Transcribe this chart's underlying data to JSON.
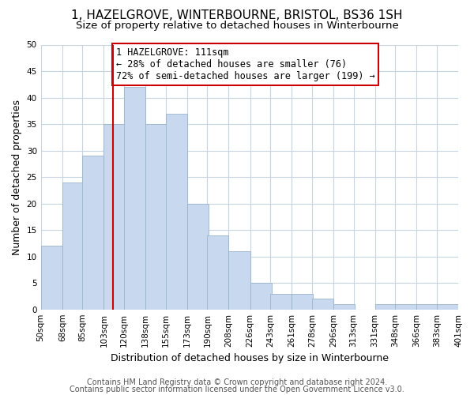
{
  "title": "1, HAZELGROVE, WINTERBOURNE, BRISTOL, BS36 1SH",
  "subtitle": "Size of property relative to detached houses in Winterbourne",
  "xlabel": "Distribution of detached houses by size in Winterbourne",
  "ylabel": "Number of detached properties",
  "bar_color": "#c8d8ee",
  "bar_edge_color": "#9ab4cc",
  "vline_x": 111,
  "vline_color": "#cc0000",
  "annotation_title": "1 HAZELGROVE: 111sqm",
  "annotation_line1": "← 28% of detached houses are smaller (76)",
  "annotation_line2": "72% of semi-detached houses are larger (199) →",
  "annotation_box_color": "#ffffff",
  "annotation_box_edge": "#cc0000",
  "bins_left": [
    50,
    68,
    85,
    103,
    120,
    138,
    155,
    173,
    190,
    208,
    226,
    243,
    261,
    278,
    296,
    313,
    331,
    348,
    366,
    383
  ],
  "bin_width": 18,
  "counts": [
    12,
    24,
    29,
    35,
    42,
    35,
    37,
    20,
    14,
    11,
    5,
    3,
    3,
    2,
    1,
    0,
    1,
    1,
    1,
    1
  ],
  "tick_labels": [
    "50sqm",
    "68sqm",
    "85sqm",
    "103sqm",
    "120sqm",
    "138sqm",
    "155sqm",
    "173sqm",
    "190sqm",
    "208sqm",
    "226sqm",
    "243sqm",
    "261sqm",
    "278sqm",
    "296sqm",
    "313sqm",
    "331sqm",
    "348sqm",
    "366sqm",
    "383sqm",
    "401sqm"
  ],
  "ylim": [
    0,
    50
  ],
  "yticks": [
    0,
    5,
    10,
    15,
    20,
    25,
    30,
    35,
    40,
    45,
    50
  ],
  "grid_color": "#c8d4e0",
  "footer1": "Contains HM Land Registry data © Crown copyright and database right 2024.",
  "footer2": "Contains public sector information licensed under the Open Government Licence v3.0.",
  "background_color": "#ffffff",
  "plot_bg_color": "#ffffff",
  "title_fontsize": 11,
  "subtitle_fontsize": 9.5,
  "axis_label_fontsize": 9,
  "tick_fontsize": 7.5,
  "footer_fontsize": 7,
  "ann_fontsize": 8.5
}
